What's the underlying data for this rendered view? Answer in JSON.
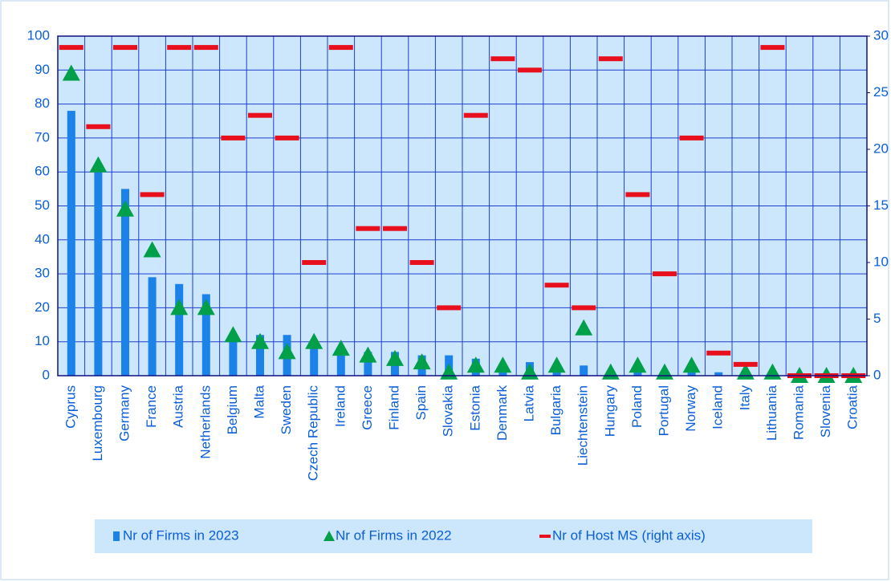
{
  "chart_data": {
    "type": "bar",
    "categories": [
      "Cyprus",
      "Luxembourg",
      "Germany",
      "France",
      "Austria",
      "Netherlands",
      "Belgium",
      "Malta",
      "Sweden",
      "Czech Republic",
      "Ireland",
      "Greece",
      "Finland",
      "Spain",
      "Slovakia",
      "Estonia",
      "Denmark",
      "Latvia",
      "Bulgaria",
      "Liechtenstein",
      "Hungary",
      "Poland",
      "Portugal",
      "Norway",
      "Iceland",
      "Italy",
      "Lithuania",
      "Romania",
      "Slovenia",
      "Croatia"
    ],
    "series": [
      {
        "name": "Nr of Firms in 2023",
        "color": "#1a82e8",
        "kind": "bar",
        "values": [
          78,
          60,
          55,
          29,
          27,
          24,
          12,
          12,
          12,
          10,
          7,
          7,
          7,
          6,
          6,
          5,
          2,
          4,
          1,
          3,
          0,
          1,
          0,
          1,
          1,
          0,
          0,
          0,
          0,
          0
        ]
      },
      {
        "name": "Nr of Firms in 2022",
        "color": "#00a04a",
        "kind": "triangle",
        "values": [
          89,
          62,
          49,
          37,
          20,
          20,
          12,
          10,
          7,
          10,
          8,
          6,
          5,
          4,
          1,
          3,
          3,
          1,
          3,
          14,
          1,
          3,
          1,
          3,
          null,
          1,
          1,
          0,
          0,
          0
        ]
      },
      {
        "name": "Nr of Host MS (right axis)",
        "color": "#e8101c",
        "kind": "dash",
        "axis": "y2",
        "values": [
          29,
          22,
          29,
          16,
          29,
          29,
          21,
          23,
          21,
          10,
          29,
          13,
          13,
          10,
          6,
          23,
          28,
          27,
          8,
          6,
          28,
          16,
          9,
          21,
          2,
          1,
          29,
          0,
          0,
          0
        ]
      }
    ],
    "ylim": [
      0,
      100
    ],
    "yticks": [
      0,
      10,
      20,
      30,
      40,
      50,
      60,
      70,
      80,
      90,
      100
    ],
    "y2lim": [
      0,
      30
    ],
    "y2ticks": [
      0,
      5,
      10,
      15,
      20,
      25,
      30
    ],
    "grid": true
  }
}
